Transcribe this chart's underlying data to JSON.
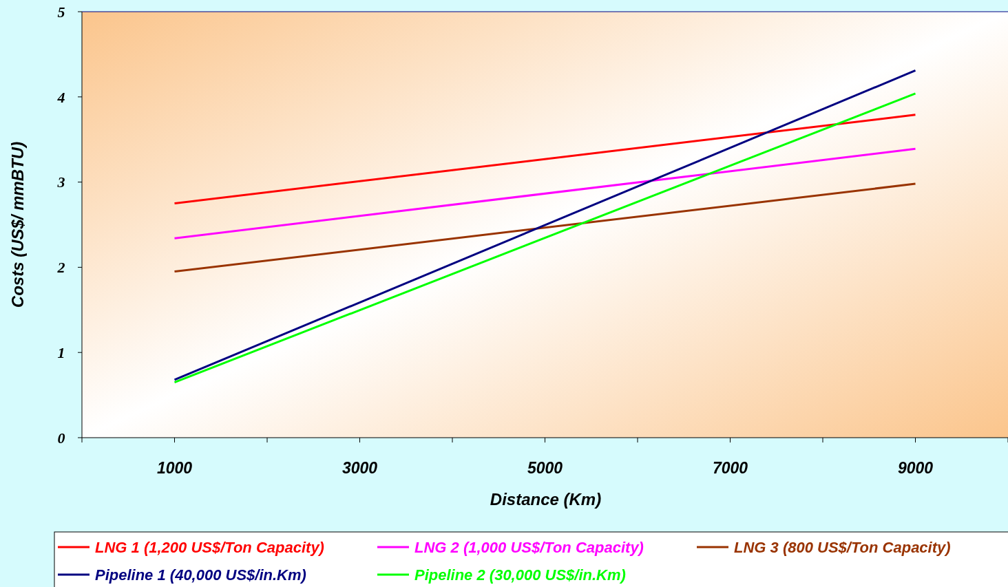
{
  "chart_data": {
    "type": "line",
    "xlabel": "Distance (Km)",
    "ylabel": "Costs (US$/ mmBTU)",
    "x": [
      1000,
      9000
    ],
    "series": [
      {
        "name": "LNG 1 (1,200 US$/Ton Capacity)",
        "color": "#ff0000",
        "values": [
          2.75,
          3.79
        ]
      },
      {
        "name": "LNG 2 (1,000 US$/Ton Capacity)",
        "color": "#ff00ff",
        "values": [
          2.34,
          3.39
        ]
      },
      {
        "name": "LNG 3 (800 US$/Ton Capacity)",
        "color": "#993300",
        "values": [
          1.95,
          2.98
        ]
      },
      {
        "name": "Pipeline 1 (40,000 US$/in.Km)",
        "color": "#000080",
        "values": [
          0.68,
          4.31
        ]
      },
      {
        "name": "Pipeline 2 (30,000 US$/in.Km)",
        "color": "#00ff00",
        "values": [
          0.65,
          4.04
        ]
      }
    ],
    "xlim": [
      0,
      10000
    ],
    "xticks": [
      {
        "value": 0,
        "label": null
      },
      1000,
      {
        "value": 2000,
        "label": null
      },
      3000,
      {
        "value": 4000,
        "label": null
      },
      5000,
      {
        "value": 6000,
        "label": null
      },
      7000,
      {
        "value": 8000,
        "label": null
      },
      9000,
      {
        "value": 10000,
        "label": null
      }
    ],
    "ylim": [
      0,
      5
    ],
    "yticks": [
      0,
      1,
      2,
      3,
      4,
      5
    ],
    "grid": false,
    "legend": "bottom",
    "marker": "none",
    "line_style": "solid"
  }
}
